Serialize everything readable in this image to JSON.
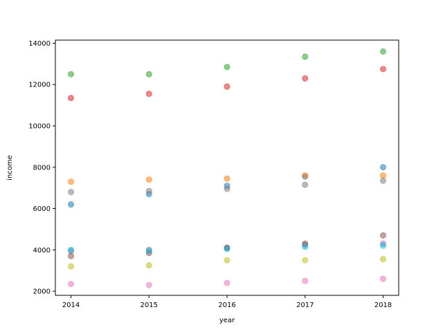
{
  "chart_data": {
    "type": "scatter",
    "title": "",
    "xlabel": "year",
    "ylabel": "income",
    "x": [
      2014,
      2015,
      2016,
      2017,
      2018
    ],
    "xticks": [
      "2014",
      "2015",
      "2016",
      "2017",
      "2018"
    ],
    "xlim": [
      2013.8,
      2018.2
    ],
    "ylim": [
      1800,
      14150
    ],
    "yticks": [
      2000,
      4000,
      6000,
      8000,
      10000,
      12000,
      14000
    ],
    "ytick_labels": [
      "2000",
      "4000",
      "6000",
      "8000",
      "10000",
      "12000",
      "14000"
    ],
    "grid": false,
    "legend": false,
    "marker_alpha": 0.55,
    "series": [
      {
        "color": "#1f77b4",
        "values": [
          6200,
          6700,
          7100,
          7550,
          8000
        ]
      },
      {
        "color": "#ff7f0e",
        "values": [
          7300,
          7400,
          7450,
          7600,
          7600
        ]
      },
      {
        "color": "#2ca02c",
        "values": [
          12500,
          12500,
          12850,
          13350,
          13600
        ]
      },
      {
        "color": "#d62728",
        "values": [
          11350,
          11550,
          11900,
          12300,
          12750
        ]
      },
      {
        "color": "#9467bd",
        "values": [
          3950,
          4000,
          4100,
          4250,
          4300
        ]
      },
      {
        "color": "#8c564b",
        "values": [
          3700,
          3850,
          4100,
          4300,
          4700
        ]
      },
      {
        "color": "#e377c2",
        "values": [
          2350,
          2300,
          2400,
          2500,
          2600
        ]
      },
      {
        "color": "#7f7f7f",
        "values": [
          6800,
          6850,
          6950,
          7150,
          7350
        ]
      },
      {
        "color": "#bcbd22",
        "values": [
          3200,
          3250,
          3500,
          3500,
          3550
        ]
      },
      {
        "color": "#17becf",
        "values": [
          4000,
          3950,
          4050,
          4150,
          4200
        ]
      }
    ]
  }
}
